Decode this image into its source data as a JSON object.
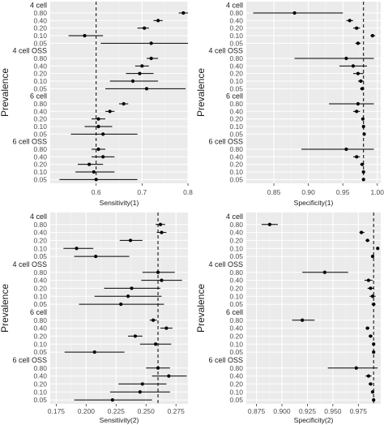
{
  "chart_data": [
    {
      "type": "forest",
      "ylabel": "Prevalence",
      "xlabel": "Sensitivity(1)",
      "xlim": [
        0.5,
        0.8
      ],
      "xticks": [
        "0.6",
        "0.7",
        "0.8"
      ],
      "xtick_values": [
        0.6,
        0.7,
        0.8
      ],
      "reference_line": 0.6,
      "groups": [
        {
          "name": "4 cell",
          "points": [
            {
              "prevalence": "0.80",
              "est": 0.79,
              "lo": 0.78,
              "hi": 0.8
            },
            {
              "prevalence": "0.40",
              "est": 0.735,
              "lo": 0.725,
              "hi": 0.745
            },
            {
              "prevalence": "0.20",
              "est": 0.705,
              "lo": 0.69,
              "hi": 0.715
            },
            {
              "prevalence": "0.10",
              "est": 0.575,
              "lo": 0.54,
              "hi": 0.615
            },
            {
              "prevalence": "0.05",
              "est": 0.72,
              "lo": 0.61,
              "hi": 0.8
            }
          ]
        },
        {
          "name": "4 cell OSS",
          "points": [
            {
              "prevalence": "0.80",
              "est": 0.72,
              "lo": 0.71,
              "hi": 0.735
            },
            {
              "prevalence": "0.40",
              "est": 0.7,
              "lo": 0.685,
              "hi": 0.715
            },
            {
              "prevalence": "0.20",
              "est": 0.695,
              "lo": 0.665,
              "hi": 0.725
            },
            {
              "prevalence": "0.10",
              "est": 0.68,
              "lo": 0.63,
              "hi": 0.735
            },
            {
              "prevalence": "0.05",
              "est": 0.71,
              "lo": 0.62,
              "hi": 0.795
            }
          ]
        },
        {
          "name": "6 cell",
          "points": [
            {
              "prevalence": "0.80",
              "est": 0.66,
              "lo": 0.65,
              "hi": 0.67
            },
            {
              "prevalence": "0.40",
              "est": 0.63,
              "lo": 0.62,
              "hi": 0.64
            },
            {
              "prevalence": "0.20",
              "est": 0.605,
              "lo": 0.59,
              "hi": 0.62
            },
            {
              "prevalence": "0.10",
              "est": 0.605,
              "lo": 0.575,
              "hi": 0.635
            },
            {
              "prevalence": "0.05",
              "est": 0.615,
              "lo": 0.545,
              "hi": 0.69
            }
          ]
        },
        {
          "name": "6 cell OSS",
          "points": [
            {
              "prevalence": "0.80",
              "est": 0.605,
              "lo": 0.59,
              "hi": 0.62
            },
            {
              "prevalence": "0.40",
              "est": 0.615,
              "lo": 0.59,
              "hi": 0.64
            },
            {
              "prevalence": "0.20",
              "est": 0.585,
              "lo": 0.56,
              "hi": 0.615
            },
            {
              "prevalence": "0.10",
              "est": 0.595,
              "lo": 0.555,
              "hi": 0.64
            },
            {
              "prevalence": "0.05",
              "est": 0.6,
              "lo": 0.52,
              "hi": 0.69
            }
          ]
        }
      ]
    },
    {
      "type": "forest",
      "ylabel": "Prevalence",
      "xlabel": "Specificity(1)",
      "xlim": [
        0.81,
        1.005
      ],
      "xticks": [
        "0.85",
        "0.90",
        "0.95",
        "1.00"
      ],
      "xtick_values": [
        0.85,
        0.9,
        0.95,
        1.0
      ],
      "reference_line": 0.98,
      "groups": [
        {
          "name": "4 cell",
          "points": [
            {
              "prevalence": "0.80",
              "est": 0.88,
              "lo": 0.82,
              "hi": 0.95
            },
            {
              "prevalence": "0.40",
              "est": 0.96,
              "lo": 0.955,
              "hi": 0.965
            },
            {
              "prevalence": "0.20",
              "est": 0.97,
              "lo": 0.965,
              "hi": 0.975
            },
            {
              "prevalence": "0.10",
              "est": 0.993,
              "lo": 0.99,
              "hi": 0.997
            },
            {
              "prevalence": "0.05",
              "est": 0.972,
              "lo": 0.968,
              "hi": 0.976
            }
          ]
        },
        {
          "name": "4 cell OSS",
          "points": [
            {
              "prevalence": "0.80",
              "est": 0.955,
              "lo": 0.88,
              "hi": 0.995
            },
            {
              "prevalence": "0.40",
              "est": 0.965,
              "lo": 0.945,
              "hi": 0.985
            },
            {
              "prevalence": "0.20",
              "est": 0.972,
              "lo": 0.965,
              "hi": 0.98
            },
            {
              "prevalence": "0.10",
              "est": 0.976,
              "lo": 0.972,
              "hi": 0.98
            },
            {
              "prevalence": "0.05",
              "est": 0.978,
              "lo": 0.975,
              "hi": 0.981
            }
          ]
        },
        {
          "name": "6 cell",
          "points": [
            {
              "prevalence": "0.80",
              "est": 0.972,
              "lo": 0.93,
              "hi": 0.995
            },
            {
              "prevalence": "0.40",
              "est": 0.97,
              "lo": 0.965,
              "hi": 0.975
            },
            {
              "prevalence": "0.20",
              "est": 0.979,
              "lo": 0.977,
              "hi": 0.981
            },
            {
              "prevalence": "0.10",
              "est": 0.98,
              "lo": 0.978,
              "hi": 0.982
            },
            {
              "prevalence": "0.05",
              "est": 0.981,
              "lo": 0.979,
              "hi": 0.983
            }
          ]
        },
        {
          "name": "6 cell OSS",
          "points": [
            {
              "prevalence": "0.80",
              "est": 0.955,
              "lo": 0.89,
              "hi": 0.995
            },
            {
              "prevalence": "0.40",
              "est": 0.97,
              "lo": 0.965,
              "hi": 0.975
            },
            {
              "prevalence": "0.20",
              "est": 0.978,
              "lo": 0.975,
              "hi": 0.981
            },
            {
              "prevalence": "0.10",
              "est": 0.98,
              "lo": 0.978,
              "hi": 0.982
            },
            {
              "prevalence": "0.05",
              "est": 0.98,
              "lo": 0.978,
              "hi": 0.982
            }
          ]
        }
      ]
    },
    {
      "type": "forest",
      "ylabel": "Prevalence",
      "xlabel": "Sensitivity(2)",
      "xlim": [
        0.17,
        0.285
      ],
      "xticks": [
        "0.175",
        "0.200",
        "0.225",
        "0.250",
        "0.275"
      ],
      "xtick_values": [
        0.175,
        0.2,
        0.225,
        0.25,
        0.275
      ],
      "reference_line": 0.26,
      "groups": [
        {
          "name": "4 cell",
          "points": [
            {
              "prevalence": "0.80",
              "est": 0.262,
              "lo": 0.258,
              "hi": 0.266
            },
            {
              "prevalence": "0.40",
              "est": 0.263,
              "lo": 0.259,
              "hi": 0.267
            },
            {
              "prevalence": "0.20",
              "est": 0.237,
              "lo": 0.228,
              "hi": 0.247
            },
            {
              "prevalence": "0.10",
              "est": 0.192,
              "lo": 0.181,
              "hi": 0.206
            },
            {
              "prevalence": "0.05",
              "est": 0.208,
              "lo": 0.19,
              "hi": 0.236
            }
          ]
        },
        {
          "name": "4 cell OSS",
          "points": [
            {
              "prevalence": "0.80",
              "est": 0.26,
              "lo": 0.247,
              "hi": 0.274
            },
            {
              "prevalence": "0.40",
              "est": 0.263,
              "lo": 0.246,
              "hi": 0.28
            },
            {
              "prevalence": "0.20",
              "est": 0.238,
              "lo": 0.215,
              "hi": 0.262
            },
            {
              "prevalence": "0.10",
              "est": 0.235,
              "lo": 0.207,
              "hi": 0.263
            },
            {
              "prevalence": "0.05",
              "est": 0.229,
              "lo": 0.194,
              "hi": 0.265
            }
          ]
        },
        {
          "name": "6 cell",
          "points": [
            {
              "prevalence": "0.80",
              "est": 0.256,
              "lo": 0.253,
              "hi": 0.259
            },
            {
              "prevalence": "0.40",
              "est": 0.267,
              "lo": 0.262,
              "hi": 0.272
            },
            {
              "prevalence": "0.20",
              "est": 0.241,
              "lo": 0.235,
              "hi": 0.247
            },
            {
              "prevalence": "0.10",
              "est": 0.258,
              "lo": 0.245,
              "hi": 0.271
            },
            {
              "prevalence": "0.05",
              "est": 0.207,
              "lo": 0.182,
              "hi": 0.232
            }
          ]
        },
        {
          "name": "6 cell OSS",
          "points": [
            {
              "prevalence": "0.80",
              "est": 0.26,
              "lo": 0.25,
              "hi": 0.27
            },
            {
              "prevalence": "0.40",
              "est": 0.269,
              "lo": 0.255,
              "hi": 0.284
            },
            {
              "prevalence": "0.20",
              "est": 0.247,
              "lo": 0.227,
              "hi": 0.267
            },
            {
              "prevalence": "0.10",
              "est": 0.245,
              "lo": 0.22,
              "hi": 0.27
            },
            {
              "prevalence": "0.05",
              "est": 0.222,
              "lo": 0.19,
              "hi": 0.255
            }
          ]
        }
      ]
    },
    {
      "type": "forest",
      "ylabel": "Prevalence",
      "xlabel": "Specificity(2)",
      "xlim": [
        0.865,
        0.997
      ],
      "xticks": [
        "0.875",
        "0.900",
        "0.925",
        "0.950",
        "0.975"
      ],
      "xtick_values": [
        0.875,
        0.9,
        0.925,
        0.95,
        0.975
      ],
      "reference_line": 0.99,
      "groups": [
        {
          "name": "4 cell",
          "points": [
            {
              "prevalence": "0.80",
              "est": 0.888,
              "lo": 0.88,
              "hi": 0.896
            },
            {
              "prevalence": "0.40",
              "est": 0.978,
              "lo": 0.976,
              "hi": 0.981
            },
            {
              "prevalence": "0.20",
              "est": 0.984,
              "lo": 0.982,
              "hi": 0.986
            },
            {
              "prevalence": "0.10",
              "est": 0.994,
              "lo": 0.993,
              "hi": 0.995
            },
            {
              "prevalence": "0.05",
              "est": 0.989,
              "lo": 0.988,
              "hi": 0.99
            }
          ]
        },
        {
          "name": "4 cell OSS",
          "points": [
            {
              "prevalence": "0.80",
              "est": 0.942,
              "lo": 0.92,
              "hi": 0.965
            },
            {
              "prevalence": "0.40",
              "est": 0.985,
              "lo": 0.981,
              "hi": 0.989
            },
            {
              "prevalence": "0.20",
              "est": 0.987,
              "lo": 0.984,
              "hi": 0.99
            },
            {
              "prevalence": "0.10",
              "est": 0.989,
              "lo": 0.986,
              "hi": 0.992
            },
            {
              "prevalence": "0.05",
              "est": 0.99,
              "lo": 0.988,
              "hi": 0.992
            }
          ]
        },
        {
          "name": "6 cell",
          "points": [
            {
              "prevalence": "0.80",
              "est": 0.92,
              "lo": 0.91,
              "hi": 0.932
            },
            {
              "prevalence": "0.40",
              "est": 0.984,
              "lo": 0.982,
              "hi": 0.986
            },
            {
              "prevalence": "0.20",
              "est": 0.987,
              "lo": 0.985,
              "hi": 0.989
            },
            {
              "prevalence": "0.10",
              "est": 0.99,
              "lo": 0.989,
              "hi": 0.991
            },
            {
              "prevalence": "0.05",
              "est": 0.99,
              "lo": 0.989,
              "hi": 0.991
            }
          ]
        },
        {
          "name": "6 cell OSS",
          "points": [
            {
              "prevalence": "0.80",
              "est": 0.973,
              "lo": 0.945,
              "hi": 0.994
            },
            {
              "prevalence": "0.40",
              "est": 0.985,
              "lo": 0.982,
              "hi": 0.988
            },
            {
              "prevalence": "0.20",
              "est": 0.987,
              "lo": 0.985,
              "hi": 0.989
            },
            {
              "prevalence": "0.10",
              "est": 0.989,
              "lo": 0.988,
              "hi": 0.99
            },
            {
              "prevalence": "0.05",
              "est": 0.99,
              "lo": 0.989,
              "hi": 0.991
            }
          ]
        }
      ]
    }
  ]
}
